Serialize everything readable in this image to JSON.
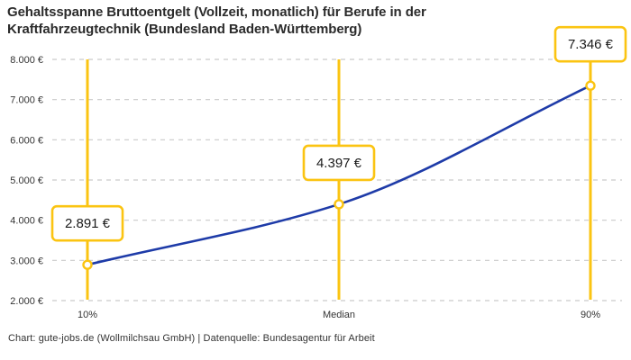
{
  "title": "Gehaltsspanne Bruttoentgelt (Vollzeit, monatlich) für Berufe in der\nKraftfahrzeugtechnik (Bundesland Baden-Württemberg)",
  "footer": "Chart: gute-jobs.de (Wollmilchsau GmbH) | Datenquelle: Bundesagentur für Arbeit",
  "chart_data": {
    "type": "line",
    "title": "Gehaltsspanne Bruttoentgelt (Vollzeit, monatlich) für Berufe in der Kraftfahrzeugtechnik (Bundesland Baden-Württemberg)",
    "categories": [
      "10%",
      "Median",
      "90%"
    ],
    "values": [
      2891,
      4397,
      7346
    ],
    "point_labels": [
      "2.891 €",
      "4.397 €",
      "7.346 €"
    ],
    "ylim": [
      2000,
      8000
    ],
    "ytick_values": [
      2000,
      3000,
      4000,
      5000,
      6000,
      7000,
      8000
    ],
    "ytick_labels": [
      "2.000 €",
      "3.000 €",
      "4.000 €",
      "5.000 €",
      "6.000 €",
      "7.000 €",
      "8.000 €"
    ],
    "grid": "horizontal-dashed",
    "legend": "none",
    "xlabel": "",
    "ylabel": "",
    "colors": {
      "line": "#1E3BA8",
      "accent": "#FBC412",
      "grid": "#C9C9C9",
      "tick_text": "#333333",
      "annotation_text": "#1A1A1A",
      "annotation_fill": "#FFFFFF",
      "background": "#FFFFFF"
    }
  }
}
